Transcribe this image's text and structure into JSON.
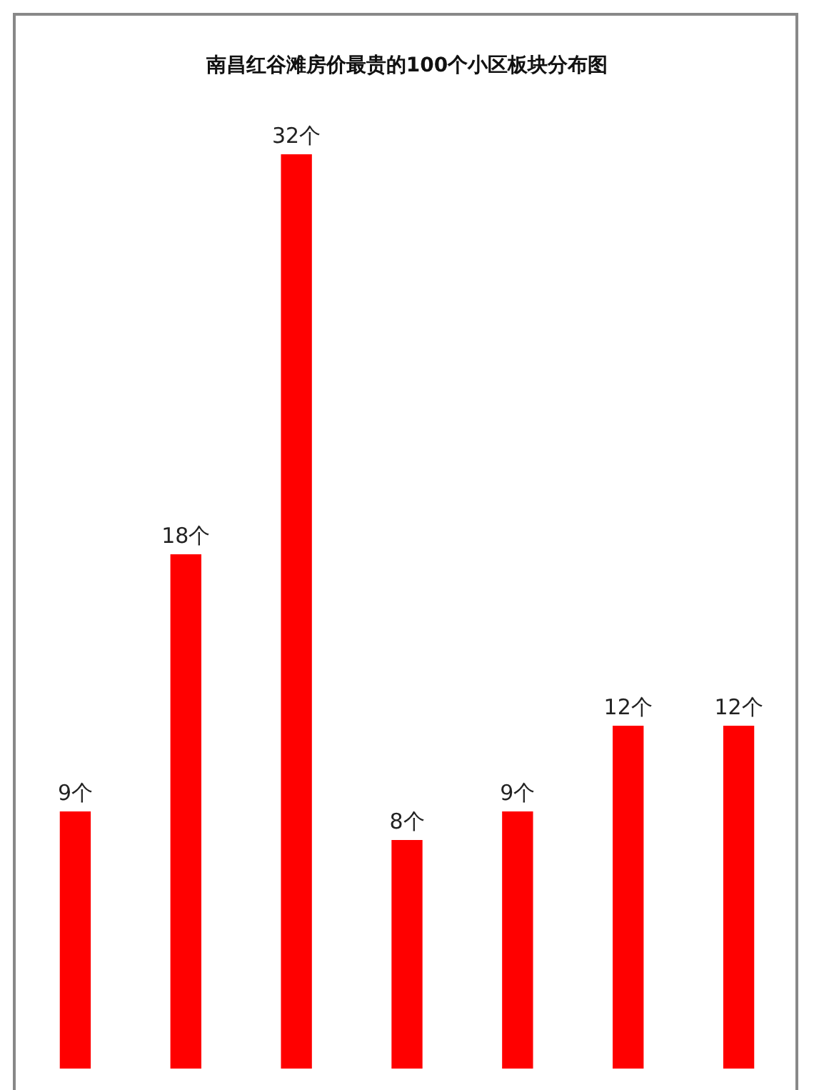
{
  "chart_data": {
    "type": "bar",
    "title": "南昌红谷滩房价最贵的100个小区板块分布图",
    "categories": [
      null,
      null,
      null,
      null,
      null,
      null,
      null
    ],
    "values": [
      9,
      18,
      32,
      8,
      9,
      12,
      12
    ],
    "color": "#ff0000",
    "value_labels": [
      "9个",
      "18个",
      "32个",
      "8个",
      "9个",
      "12个",
      "12个"
    ],
    "ylim": [
      0,
      32
    ]
  }
}
